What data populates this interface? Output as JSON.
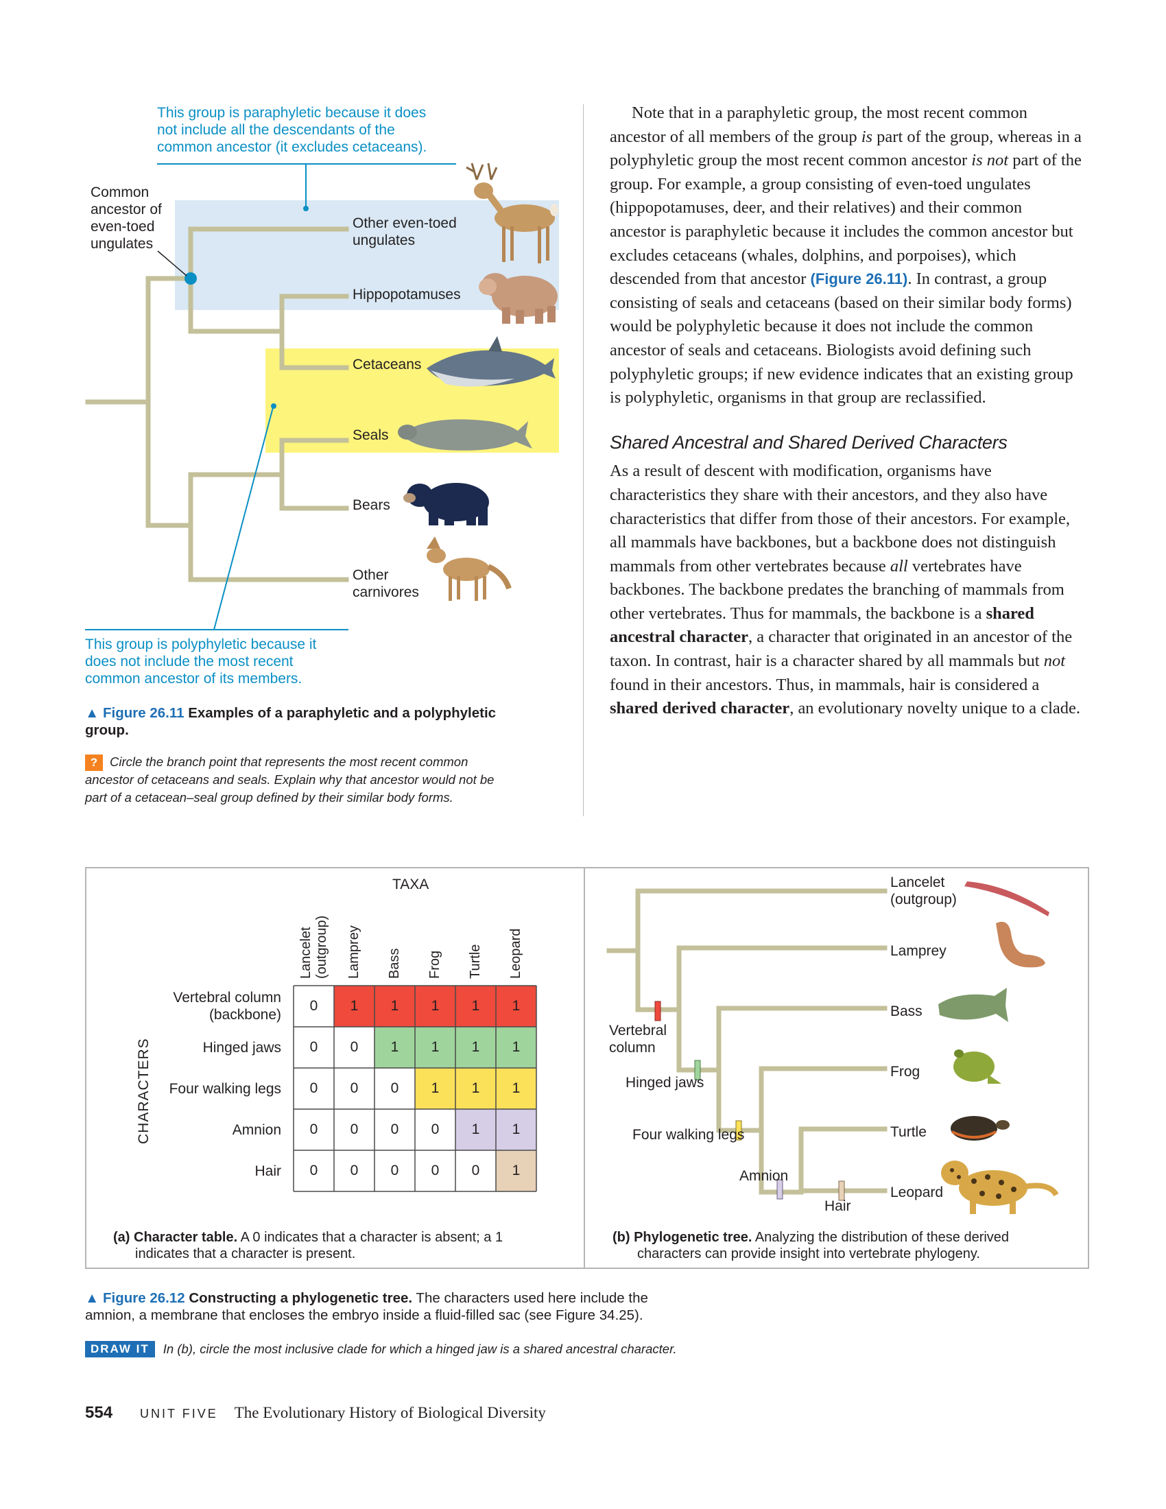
{
  "fig11": {
    "callout_para": [
      "This group is paraphyletic because it does",
      "not include all the descendants of the",
      "common ancestor (it excludes cetaceans)."
    ],
    "callout_poly": [
      "This group is polyphyletic because it",
      "does not include the most recent",
      "common ancestor of its members."
    ],
    "ancestor_label": [
      "Common",
      "ancestor of",
      "even-toed",
      "ungulates"
    ],
    "taxa": {
      "even_toed": [
        "Other even-toed",
        "ungulates"
      ],
      "hippos": "Hippopotamuses",
      "cetaceans": "Cetaceans",
      "seals": "Seals",
      "bears": "Bears",
      "carnivores": [
        "Other",
        "carnivores"
      ]
    },
    "caption_label": "▲ Figure 26.11",
    "caption_title_1": "Examples of a paraphyletic and a polyphyletic",
    "caption_title_2": "group.",
    "question_badge": "?",
    "question_lines": [
      "Circle the branch point that represents the most recent common",
      "ancestor of cetaceans and seals. Explain why that ancestor would not be",
      "part of a cetacean–seal group defined by their similar body forms."
    ]
  },
  "text": {
    "para1": {
      "a": "Note that in a paraphyletic group, the most recent com­mon ancestor of all members of the group ",
      "b": "is",
      "c": " part of the group, whereas in a polyphyletic group the most recent common ancestor ",
      "d": "is not",
      "e": " part of the group. For example, a group consisting of even-toed ungulates (hippopotamuses, deer, and their relatives) and their common ancestor is paraphyletic because it includes the common ancestor but excludes cetaceans (whales, dolphins, and porpoises), which descended from that ancestor ",
      "f": "(Figure 26.11)",
      "g": ". In contrast, a group consisting of seals and cetaceans (based on their similar body forms) would be polyphyletic because it does not include the common ancestor of seals and cetaceans. Biologists avoid defining such polyphyletic groups; if new evidence indicates that an existing group is polyphyletic, organisms in that group are reclassified."
    },
    "heading": "Shared Ancestral and Shared Derived Characters",
    "para2": {
      "a": "As a result of descent with modification, organisms have characteristics they share with their ancestors, and they also have characteristics that differ from those of their ancestors. For example, all mammals have backbones, but a backbone does not distinguish mammals from other vertebrates be­cause ",
      "b": "all",
      "c": " vertebrates have backbones. The backbone pre­dates the branching of mammals from other vertebrates. Thus for mammals, the backbone is a ",
      "d": "shared ancestral character",
      "e": ", a character that originated in an ancestor of the taxon. In contrast, hair is a character shared by all mammals but ",
      "f": "not",
      "g": " found in their ancestors. Thus, in mammals, hair is considered a ",
      "h": "shared derived character",
      "i": ", an evolutionary novelty unique to a clade."
    }
  },
  "fig12": {
    "taxa_header": "TAXA",
    "characters_header": "CHARACTERS",
    "columns": [
      "Lancelet (outgroup)",
      "Lamprey",
      "Bass",
      "Frog",
      "Turtle",
      "Leopard"
    ],
    "column_lines": [
      [
        "Lancelet",
        "(outgroup)"
      ],
      [
        "Lamprey"
      ],
      [
        "Bass"
      ],
      [
        "Frog"
      ],
      [
        "Turtle"
      ],
      [
        "Leopard"
      ]
    ],
    "rows": [
      {
        "label": [
          "Vertebral column",
          "(backbone)"
        ],
        "values": [
          "0",
          "1",
          "1",
          "1",
          "1",
          "1"
        ],
        "color": "#ef4a3c"
      },
      {
        "label": [
          "Hinged jaws"
        ],
        "values": [
          "0",
          "0",
          "1",
          "1",
          "1",
          "1"
        ],
        "color": "#9fd59c"
      },
      {
        "label": [
          "Four walking legs"
        ],
        "values": [
          "0",
          "0",
          "0",
          "1",
          "1",
          "1"
        ],
        "color": "#fbe05a"
      },
      {
        "label": [
          "Amnion"
        ],
        "values": [
          "0",
          "0",
          "0",
          "0",
          "1",
          "1"
        ],
        "color": "#d6cde6"
      },
      {
        "label": [
          "Hair"
        ],
        "values": [
          "0",
          "0",
          "0",
          "0",
          "0",
          "1"
        ],
        "color": "#e7d1b7"
      }
    ],
    "caption_a_label": "(a) Character table.",
    "caption_a_text_1": " A 0 indicates that a character is absent; a 1",
    "caption_a_text_2": "indicates that a character is present.",
    "tree_taxa": [
      [
        "Lancelet",
        "(outgroup)"
      ],
      [
        "Lamprey"
      ],
      [
        "Bass"
      ],
      [
        "Frog"
      ],
      [
        "Turtle"
      ],
      [
        "Leopard"
      ]
    ],
    "tree_chars": [
      [
        "Vertebral",
        "column"
      ],
      [
        "Hinged jaws"
      ],
      [
        "Four walking legs"
      ],
      [
        "Amnion"
      ],
      [
        "Hair"
      ]
    ],
    "caption_b_label": "(b) Phylogenetic tree.",
    "caption_b_text_1": " Analyzing the distribution of these derived",
    "caption_b_text_2": "characters can provide insight into vertebrate phylogeny.",
    "caption_label": "▲ Figure 26.12",
    "caption_title": "Constructing a phylogenetic tree.",
    "caption_rest_1": " The characters used here include the",
    "caption_rest_2": "amnion, a membrane that encloses the embryo inside a fluid-filled sac (see Figure 34.25).",
    "draw_badge": "DRAW IT",
    "draw_text": "In (b), circle the most inclusive clade for which a hinged jaw is a shared ancestral character."
  },
  "footer": {
    "page_number": "554",
    "unit": "UNIT FIVE",
    "book_title": "The Evolutionary History of Biological Diversity"
  },
  "colors": {
    "tree_line": "#c3c09a",
    "blue_highlight": "#d9e8f4",
    "yellow_highlight": "#fdf47c",
    "callout_blue": "#0a8fc5",
    "figure_blue": "#1e6fb5"
  }
}
